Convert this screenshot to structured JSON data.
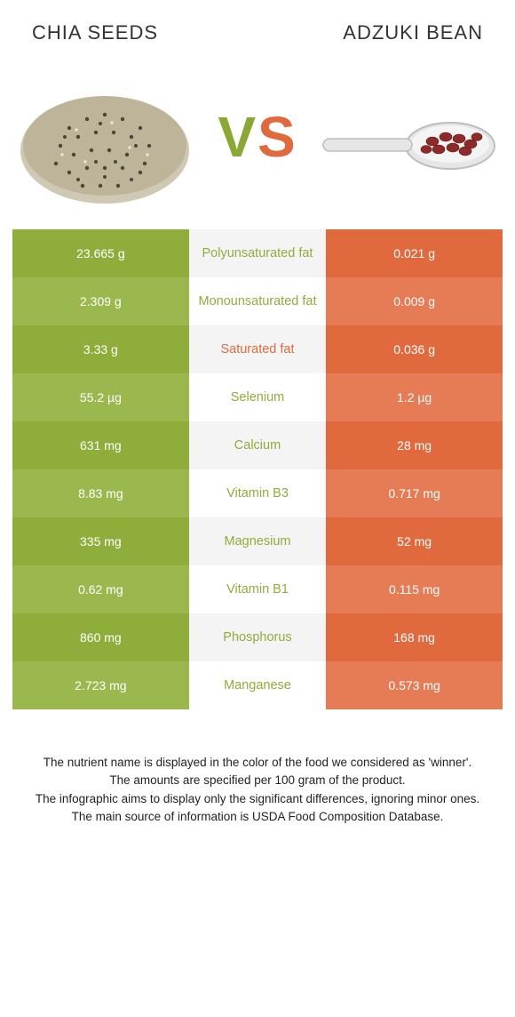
{
  "header": {
    "left": "Chia seeds",
    "right": "Adzuki bean"
  },
  "vs": {
    "v": "V",
    "s": "S"
  },
  "colors": {
    "left_odd": "#8fad3a",
    "left_even": "#9bb84e",
    "mid_odd": "#f4f4f4",
    "mid_even": "#ffffff",
    "right_odd": "#e06a3d",
    "right_even": "#e57c55",
    "nutrient_left_win": "#8fad3a",
    "nutrient_right_win": "#e06a3d",
    "nutrient_neutral": "#999999"
  },
  "rows": [
    {
      "nutrient": "Polyunsaturated fat",
      "left": "23.665 g",
      "right": "0.021 g",
      "winner": "left"
    },
    {
      "nutrient": "Monounsaturated fat",
      "left": "2.309 g",
      "right": "0.009 g",
      "winner": "left"
    },
    {
      "nutrient": "Saturated fat",
      "left": "3.33 g",
      "right": "0.036 g",
      "winner": "right"
    },
    {
      "nutrient": "Selenium",
      "left": "55.2 µg",
      "right": "1.2 µg",
      "winner": "left"
    },
    {
      "nutrient": "Calcium",
      "left": "631 mg",
      "right": "28 mg",
      "winner": "left"
    },
    {
      "nutrient": "Vitamin B3",
      "left": "8.83 mg",
      "right": "0.717 mg",
      "winner": "left"
    },
    {
      "nutrient": "Magnesium",
      "left": "335 mg",
      "right": "52 mg",
      "winner": "left"
    },
    {
      "nutrient": "Vitamin B1",
      "left": "0.62 mg",
      "right": "0.115 mg",
      "winner": "left"
    },
    {
      "nutrient": "Phosphorus",
      "left": "860 mg",
      "right": "168 mg",
      "winner": "left"
    },
    {
      "nutrient": "Manganese",
      "left": "2.723 mg",
      "right": "0.573 mg",
      "winner": "left"
    }
  ],
  "footer": {
    "line1": "The nutrient name is displayed in the color of the food we considered as 'winner'.",
    "line2": "The amounts are specified per 100 gram of the product.",
    "line3": "The infographic aims to display only the significant differences, ignoring minor ones.",
    "line4": "The main source of information is USDA Food Composition Database."
  }
}
